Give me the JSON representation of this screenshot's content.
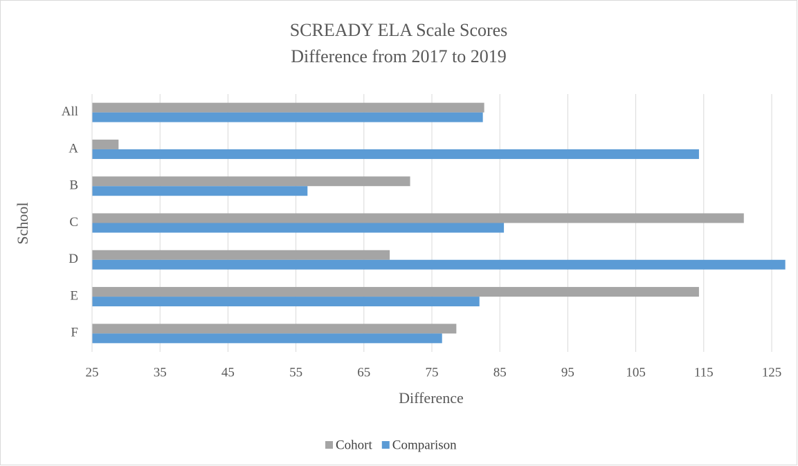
{
  "chart_data": {
    "type": "bar",
    "orientation": "horizontal",
    "title": "SCREADY ELA Scale Scores",
    "subtitle": "Difference from 2017 to 2019",
    "x_label": "Difference",
    "y_label": "School",
    "categories": [
      "All",
      "A",
      "B",
      "C",
      "D",
      "E",
      "F"
    ],
    "series": [
      {
        "name": "Cohort",
        "color": "#a5a5a5",
        "values": [
          82.7,
          28.9,
          71.8,
          120.9,
          68.8,
          114.3,
          78.6
        ]
      },
      {
        "name": "Comparison",
        "color": "#5b9bd5",
        "values": [
          82.5,
          114.3,
          56.7,
          85.6,
          127,
          82.0,
          76.5
        ]
      }
    ],
    "xlim": [
      25,
      127
    ],
    "xticks": [
      25,
      35,
      45,
      55,
      65,
      75,
      85,
      95,
      105,
      115,
      125
    ],
    "grid": true,
    "legend": "bottom"
  }
}
